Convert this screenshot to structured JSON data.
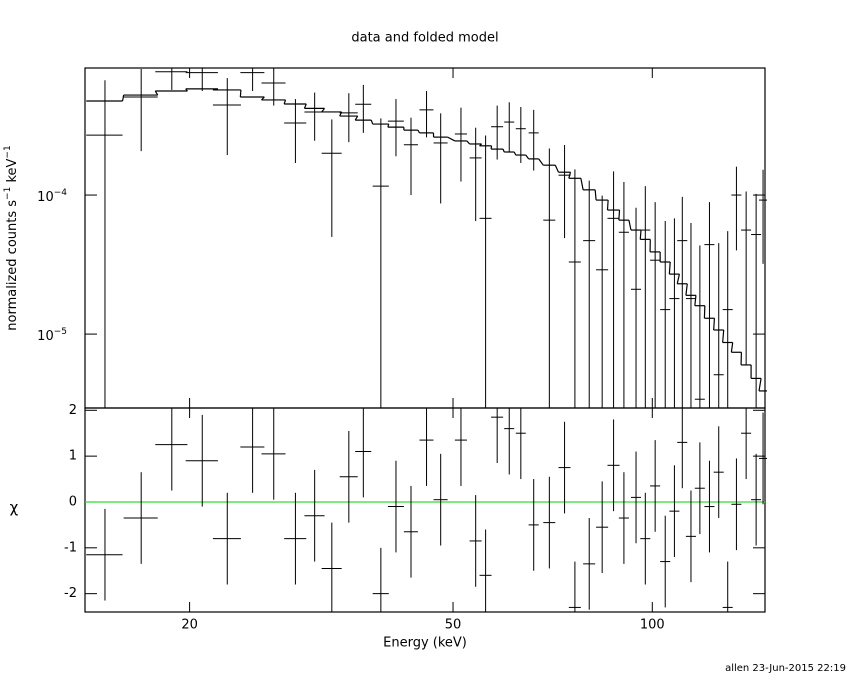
{
  "chart_data": [
    {
      "type": "spectrum",
      "title": "data and folded model",
      "ylabel": [
        "normalized counts s",
        "−1",
        " keV",
        "−1"
      ],
      "log_x": true,
      "log_y": true,
      "xlim": [
        13.9,
        148
      ],
      "ylim": [
        2.94e-06,
        0.00082
      ],
      "yticks": [
        {
          "value": 1e-05,
          "label": "10",
          "exponent": "−5"
        },
        {
          "value": 0.0001,
          "label": "10",
          "exponent": "−4"
        }
      ],
      "x": [
        14.9,
        16.9,
        18.8,
        20.9,
        22.8,
        24.9,
        26.8,
        28.9,
        30.9,
        32.8,
        34.8,
        36.6,
        38.9,
        41.0,
        43.2,
        45.6,
        47.9,
        51.4,
        54.1,
        56.0,
        58.3,
        60.8,
        63.3,
        66.2,
        69.9,
        73.7,
        76.4,
        80.3,
        84.0,
        87.4,
        90.6,
        94.5,
        97.6,
        101,
        104.6,
        108,
        111,
        114.4,
        118,
        122,
        126,
        130,
        134,
        138.6,
        143.5,
        147
      ],
      "xerr": [
        0.94,
        1.0,
        1.05,
        1.17,
        1.11,
        1.04,
        1.12,
        1.11,
        1.08,
        1.14,
        1.09,
        1.02,
        1.09,
        1.14,
        1.06,
        1.11,
        1.17,
        1.08,
        1.13,
        1.17,
        1.22,
        1.06,
        1.1,
        1.16,
        1.46,
        1.54,
        1.6,
        1.68,
        1.76,
        1.83,
        1.59,
        1.65,
        1.7,
        1.77,
        1.83,
        1.89,
        1.94,
        2.0,
        2.06,
        2.13,
        2.2,
        2.27,
        2.34,
        2.42,
        2.5,
        2.05
      ],
      "values": [
        0.00027,
        0.000507,
        0.00077,
        0.00076,
        0.000444,
        0.00076,
        0.00064,
        0.00033,
        0.000396,
        0.0002,
        0.00039,
        0.00045,
        0.000116,
        0.00034,
        0.00023,
        0.00041,
        0.000237,
        0.000275,
        0.000185,
        6.8e-05,
        0.00031,
        0.000335,
        0.0003,
        0.00028,
        6.6e-05,
        0.000139,
        3.3e-05,
        4.7e-05,
        2.9e-05,
        6.8e-05,
        5.4e-05,
        2.1e-05,
        5.6e-05,
        3.4e-05,
        1.5e-05,
        1.8e-05,
        4.7e-05,
        1.8e-05,
        3.4e-06,
        4.4e-05,
        5.1e-06,
        1.5e-05,
        0.0001,
        5.6e-05,
        5.2e-05,
        9.2e-05
      ],
      "errors": [
        0.0004,
        0.0003,
        0.0002,
        0.0002,
        0.00025,
        0.0002,
        0.0002,
        0.00016,
        0.00015,
        0.00015,
        0.00015,
        0.00017,
        0.00024,
        0.00015,
        0.00013,
        0.00015,
        0.00015,
        0.00015,
        0.00012,
        0.0002,
        0.00013,
        0.00013,
        0.00013,
        0.00013,
        0.00015,
        9e-05,
        0.00012,
        8e-05,
        7e-05,
        8e-05,
        7e-05,
        6e-05,
        6e-05,
        5.5e-05,
        5e-05,
        5e-05,
        5e-05,
        4.5e-05,
        4e-05,
        4.5e-05,
        4e-05,
        4e-05,
        6e-05,
        5e-05,
        5e-05,
        6e-05
      ],
      "model": [
        0.000475,
        0.000524,
        0.00056,
        0.00058,
        0.00057,
        0.000507,
        0.000483,
        0.000452,
        0.00042,
        0.000396,
        0.00037,
        0.000346,
        0.000324,
        0.000308,
        0.000293,
        0.00028,
        0.000261,
        0.000245,
        0.000233,
        0.000226,
        0.000214,
        0.000204,
        0.000194,
        0.000182,
        0.000164,
        0.000146,
        0.000132,
        0.000109,
        9.2e-05,
        7.8e-05,
        6.6e-05,
        5.6e-05,
        4.8e-05,
        3.9e-05,
        3.3e-05,
        2.7e-05,
        2.3e-05,
        1.9e-05,
        1.6e-05,
        1.3e-05,
        1.07e-05,
        8.7e-06,
        7.4e-06,
        6e-06,
        4.8e-06,
        3.9e-06
      ],
      "color": "#000000"
    },
    {
      "type": "residual",
      "xlabel": "Energy (keV)",
      "ylabel": "χ",
      "log_x": true,
      "xlim": [
        13.9,
        148
      ],
      "xticks": [
        20,
        50,
        100
      ],
      "ylim": [
        -2.4,
        2.05
      ],
      "yticks": [
        -2,
        -1,
        0,
        1,
        2
      ],
      "x": [
        14.9,
        16.9,
        18.8,
        20.9,
        22.8,
        24.9,
        26.8,
        28.9,
        30.9,
        32.8,
        34.8,
        36.6,
        38.9,
        41.0,
        43.2,
        45.6,
        47.9,
        51.4,
        54.1,
        56.0,
        58.3,
        60.8,
        63.3,
        66.2,
        69.9,
        73.7,
        76.4,
        80.3,
        84.0,
        87.4,
        90.6,
        94.5,
        97.6,
        101,
        104.6,
        108,
        111,
        114.4,
        118,
        122,
        126,
        130,
        134,
        138.6,
        143.5,
        147
      ],
      "xerr": [
        0.94,
        1.0,
        1.05,
        1.17,
        1.11,
        1.04,
        1.12,
        1.11,
        1.08,
        1.14,
        1.09,
        1.02,
        1.09,
        1.14,
        1.06,
        1.11,
        1.17,
        1.08,
        1.13,
        1.17,
        1.22,
        1.06,
        1.1,
        1.16,
        1.46,
        1.54,
        1.6,
        1.68,
        1.76,
        1.83,
        1.59,
        1.65,
        1.7,
        1.77,
        1.83,
        1.89,
        1.94,
        2.0,
        2.06,
        2.13,
        2.2,
        2.27,
        2.34,
        2.42,
        2.5,
        2.05
      ],
      "values": [
        -1.15,
        -0.35,
        1.25,
        0.9,
        -0.8,
        1.2,
        1.05,
        -0.8,
        -0.3,
        -1.45,
        0.55,
        1.1,
        -2.0,
        -0.1,
        -0.65,
        1.35,
        0.05,
        1.35,
        -0.85,
        -1.6,
        1.85,
        1.6,
        1.5,
        -0.5,
        -0.45,
        0.75,
        -2.3,
        -1.35,
        -0.55,
        0.8,
        -0.35,
        0.1,
        -0.8,
        0.35,
        -1.3,
        -0.2,
        1.3,
        -0.75,
        0.3,
        -0.1,
        0.65,
        -2.3,
        -0.05,
        1.5,
        0.05,
        0.95
      ],
      "errors": [
        1,
        1,
        1,
        1,
        1,
        1,
        1,
        1,
        1,
        1,
        1,
        1,
        1,
        1,
        1,
        1,
        1,
        1,
        1,
        1,
        1,
        1,
        1,
        1,
        1,
        1,
        1,
        1,
        1,
        1,
        1,
        1,
        1,
        1,
        1,
        1,
        1,
        1,
        1,
        1,
        1,
        1,
        1,
        1,
        1,
        1
      ],
      "color": "#000000",
      "zero_line_color": "#33dd33"
    }
  ],
  "footer": "allen 23-Jun-2015 22:19"
}
